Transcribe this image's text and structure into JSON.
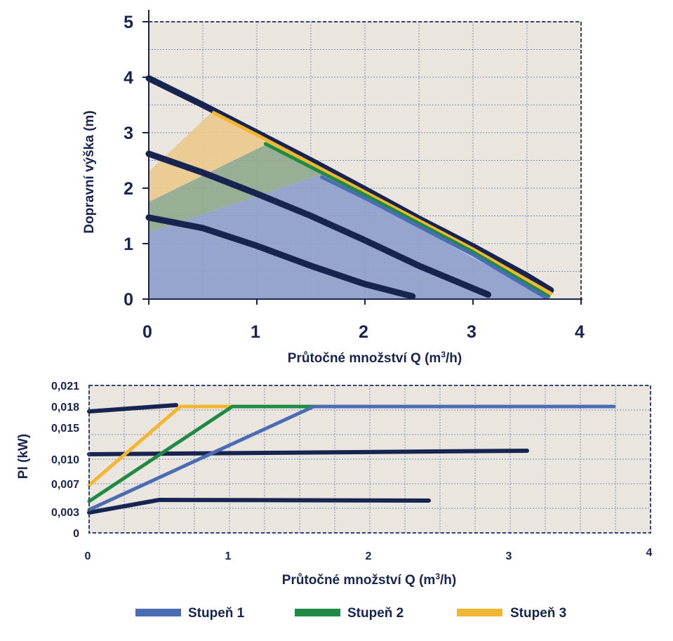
{
  "colors": {
    "navy": "#17244f",
    "plot_bg": "#ebe5df",
    "stage1": "#4a6cb3",
    "stage2": "#1f8a43",
    "stage3": "#f2b631",
    "fill1": "#8d9dcb",
    "fill2": "#8fa98e",
    "fill3": "#ecc98d"
  },
  "chart_data": [
    {
      "type": "line",
      "title": "",
      "xlabel_main": "Průtočné množství Q (m",
      "xlabel_sup": "3",
      "xlabel_tail": "/h)",
      "ylabel": "Dopravní výška (m)",
      "xlim": [
        0,
        4
      ],
      "ylim": [
        0,
        5
      ],
      "xticks": [
        "0",
        "1",
        "2",
        "3",
        "4"
      ],
      "yticks": [
        "0",
        "1",
        "2",
        "3",
        "4",
        "5"
      ],
      "grid": true,
      "regions": [
        {
          "name": "Stupeň 3 range",
          "color_key": "fill3",
          "points": [
            [
              0,
              2.3
            ],
            [
              0.6,
              3.4
            ],
            [
              1.1,
              2.8
            ],
            [
              0,
              1.75
            ]
          ]
        },
        {
          "name": "Stupeň 2 range",
          "color_key": "fill2",
          "points": [
            [
              0,
              1.75
            ],
            [
              1.1,
              2.8
            ],
            [
              1.6,
              2.25
            ],
            [
              0,
              1.2
            ]
          ]
        },
        {
          "name": "Stupeň 1 range",
          "color_key": "fill1",
          "points": [
            [
              0,
              0
            ],
            [
              0,
              1.2
            ],
            [
              1.6,
              2.25
            ],
            [
              3.7,
              0
            ]
          ]
        }
      ],
      "series": [
        {
          "name": "max curve",
          "color_key": "navy",
          "width": 9,
          "x": [
            0,
            0.5,
            1.0,
            1.5,
            2.0,
            2.5,
            3.0,
            3.5,
            3.72
          ],
          "y": [
            3.98,
            3.5,
            3.0,
            2.5,
            1.98,
            1.45,
            0.95,
            0.42,
            0.16
          ]
        },
        {
          "name": "Stupeň 3",
          "color_key": "stage3",
          "width": 5,
          "x": [
            0.6,
            1.0,
            2.0,
            3.0,
            3.72
          ],
          "y": [
            3.36,
            2.96,
            1.93,
            0.9,
            0.1
          ]
        },
        {
          "name": "Stupeň 2",
          "color_key": "stage2",
          "width": 5,
          "x": [
            1.08,
            2.0,
            3.0,
            3.7
          ],
          "y": [
            2.8,
            1.88,
            0.85,
            0.05
          ]
        },
        {
          "name": "Stupeň 1",
          "color_key": "stage1",
          "width": 5,
          "x": [
            1.6,
            2.0,
            3.0,
            3.68
          ],
          "y": [
            2.2,
            1.82,
            0.8,
            0.02
          ]
        },
        {
          "name": "middle curve",
          "color_key": "navy",
          "width": 9,
          "x": [
            0,
            0.5,
            1.0,
            1.5,
            2.0,
            2.5,
            3.14
          ],
          "y": [
            2.62,
            2.28,
            1.9,
            1.5,
            1.06,
            0.6,
            0.08
          ]
        },
        {
          "name": "low curve",
          "color_key": "navy",
          "width": 9,
          "x": [
            0,
            0.5,
            1.0,
            1.5,
            2.0,
            2.44
          ],
          "y": [
            1.47,
            1.28,
            0.96,
            0.6,
            0.27,
            0.05
          ]
        }
      ]
    },
    {
      "type": "line",
      "title": "",
      "xlabel_main": "Průtočné množství Q (m",
      "xlabel_sup": "3",
      "xlabel_tail": "/h)",
      "ylabel": "Pl (kW)",
      "xlim": [
        0,
        4
      ],
      "ylim": [
        0,
        0.021
      ],
      "xticks": [
        "0",
        "1",
        "2",
        "3",
        "4"
      ],
      "yticks": [
        "0",
        "0,003",
        "0,007",
        "0,010",
        "0,015",
        "0,018",
        "0,021"
      ],
      "ytick_values": [
        0,
        0.003,
        0.007,
        0.0105,
        0.015,
        0.018,
        0.021
      ],
      "grid": true,
      "series": [
        {
          "name": "max power",
          "color_key": "navy",
          "width": 6,
          "x": [
            0,
            0.62
          ],
          "y": [
            0.0173,
            0.0182
          ]
        },
        {
          "name": "medium power",
          "color_key": "navy",
          "width": 6,
          "x": [
            0,
            3.12
          ],
          "y": [
            0.0112,
            0.0117
          ]
        },
        {
          "name": "low power",
          "color_key": "navy",
          "width": 6,
          "x": [
            0,
            0.5,
            2.42
          ],
          "y": [
            0.0029,
            0.0047,
            0.0046
          ]
        },
        {
          "name": "Stupeň 3",
          "color_key": "stage3",
          "width": 5,
          "x": [
            0,
            0.65,
            1.02
          ],
          "y": [
            0.0068,
            0.018,
            0.018
          ]
        },
        {
          "name": "Stupeň 2",
          "color_key": "stage2",
          "width": 5,
          "x": [
            0,
            1.02,
            1.6
          ],
          "y": [
            0.0045,
            0.018,
            0.018
          ]
        },
        {
          "name": "Stupeň 1",
          "color_key": "stage1",
          "width": 5,
          "x": [
            0,
            1.6,
            3.74
          ],
          "y": [
            0.0033,
            0.018,
            0.018
          ]
        }
      ]
    }
  ],
  "legend": [
    {
      "label": "Stupeň 1",
      "color_key": "stage1"
    },
    {
      "label": "Stupeň 2",
      "color_key": "stage2"
    },
    {
      "label": "Stupeň 3",
      "color_key": "stage3"
    }
  ]
}
